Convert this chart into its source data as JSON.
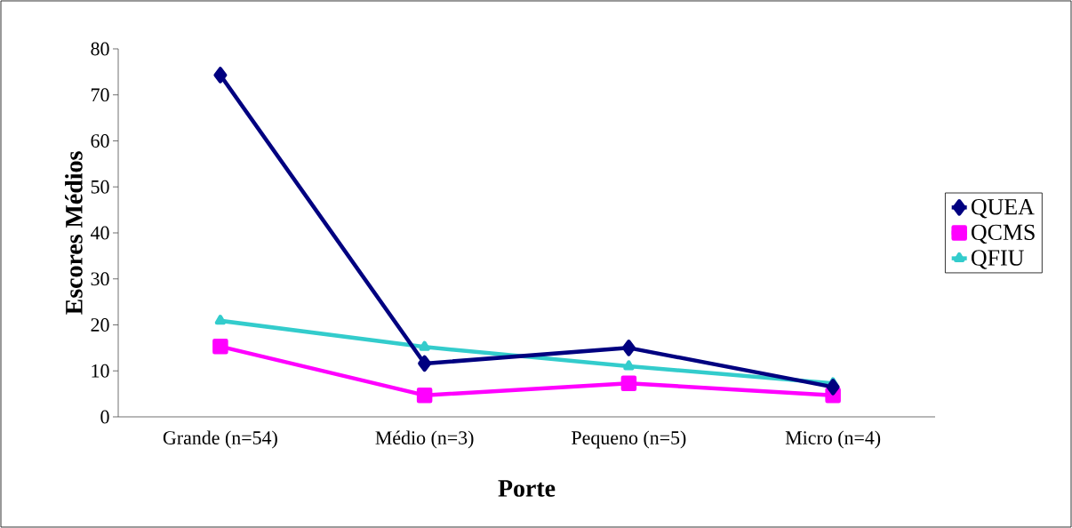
{
  "chart_data": {
    "type": "line",
    "xlabel": "Porte",
    "ylabel": "Escores Médios",
    "categories": [
      "Grande (n=54)",
      "Médio (n=3)",
      "Pequeno (n=5)",
      "Micro (n=4)"
    ],
    "series": [
      {
        "name": "QUEA",
        "color": "#000080",
        "marker": "diamond",
        "values": [
          74.3,
          11.6,
          15.0,
          6.5
        ]
      },
      {
        "name": "QCMS",
        "color": "#ff00ff",
        "marker": "square",
        "values": [
          15.3,
          4.7,
          7.3,
          4.7
        ]
      },
      {
        "name": "QFIU",
        "color": "#33cccc",
        "marker": "triangle",
        "values": [
          20.9,
          15.2,
          11.0,
          7.3
        ]
      }
    ],
    "ylim": [
      0,
      80
    ],
    "yticks": [
      0,
      10,
      20,
      30,
      40,
      50,
      60,
      70,
      80
    ],
    "legend": "right",
    "grid": false,
    "line_style": "solid"
  }
}
